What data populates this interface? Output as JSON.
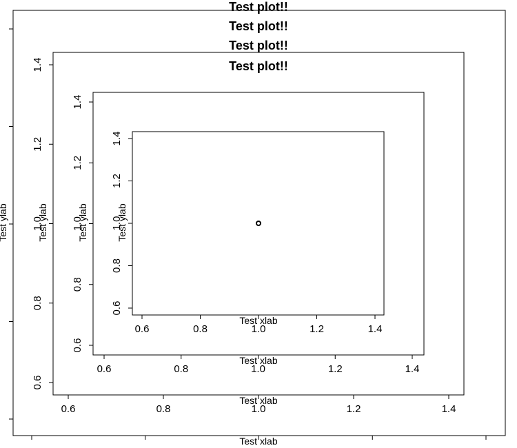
{
  "chart_data": {
    "type": "scatter",
    "title": "Test plot!!",
    "xlabel": "Test xlab",
    "ylabel": "Test ylab",
    "x": [
      1.0
    ],
    "y": [
      1.0
    ],
    "xlim": [
      0.6,
      1.4
    ],
    "ylim": [
      0.6,
      1.4
    ],
    "xticks": [
      "0.6",
      "0.8",
      "1.0",
      "1.2",
      "1.4"
    ],
    "yticks": [
      "0.6",
      "0.8",
      "1.0",
      "1.2",
      "1.4"
    ],
    "grid": false,
    "nested_panels": 4,
    "visible_titles": 4,
    "labeled_panels": 3
  }
}
